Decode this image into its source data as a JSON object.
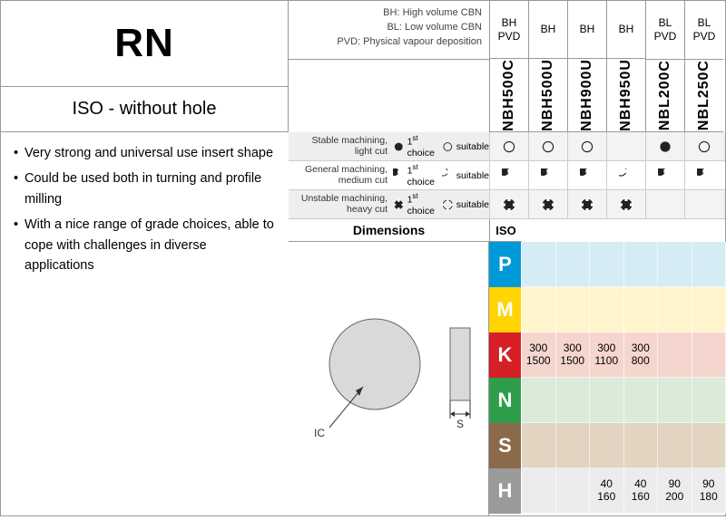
{
  "header": {
    "title": "RN",
    "subtitle": "ISO - without hole",
    "bullets": [
      "Very strong and universal use insert shape",
      "Could be used both in turning and profile milling",
      "With a nice range of grade choices, able to cope with challenges in diverse applications"
    ],
    "legend": [
      "BH: High volume CBN",
      "BL: Low volume CBN",
      "PVD: Physical vapour deposition"
    ]
  },
  "grades": [
    {
      "top1": "BH",
      "top2": "PVD",
      "name": "NBH500C"
    },
    {
      "top1": "BH",
      "top2": "",
      "name": "NBH500U"
    },
    {
      "top1": "BH",
      "top2": "",
      "name": "NBH900U"
    },
    {
      "top1": "BH",
      "top2": "",
      "name": "NBH950U"
    },
    {
      "top1": "BL",
      "top2": "PVD",
      "name": "NBL200C"
    },
    {
      "top1": "BL",
      "top2": "PVD",
      "name": "NBL250C"
    }
  ],
  "mach": {
    "first_choice_label": "1",
    "first_choice_suffix": "choice",
    "suitable_label": "suitable",
    "rows": [
      {
        "label1": "Stable machining,",
        "label2": "light cut",
        "icon": "circle",
        "alt": true,
        "cells": [
          "co",
          "co",
          "co",
          "",
          "cf",
          "co"
        ]
      },
      {
        "label1": "General machining,",
        "label2": "medium cut",
        "icon": "notch",
        "alt": false,
        "cells": [
          "nf",
          "nf",
          "nf",
          "no",
          "nf",
          "nf"
        ]
      },
      {
        "label1": "Unstable machining,",
        "label2": "heavy cut",
        "icon": "cross",
        "alt": true,
        "cells": [
          "xf",
          "xf",
          "xf",
          "xf",
          "",
          ""
        ]
      }
    ]
  },
  "dimensions_label": "Dimensions",
  "iso_label": "ISO",
  "dim_labels": {
    "ic": "IC",
    "s": "S"
  },
  "iso_rows": [
    {
      "key": "P",
      "key_bg": "#0099d8",
      "cell_bg": "#d6ecf5",
      "cells": [
        "",
        "",
        "",
        "",
        "",
        ""
      ]
    },
    {
      "key": "M",
      "key_bg": "#ffd400",
      "cell_bg": "#fff4cc",
      "cells": [
        "",
        "",
        "",
        "",
        "",
        ""
      ]
    },
    {
      "key": "K",
      "key_bg": "#d61f26",
      "cell_bg": "#f5d6cf",
      "cells": [
        "300\n1500",
        "300\n1500",
        "300\n1100",
        "300\n800",
        "",
        ""
      ]
    },
    {
      "key": "N",
      "key_bg": "#2e9e4b",
      "cell_bg": "#dcebd9",
      "cells": [
        "",
        "",
        "",
        "",
        "",
        ""
      ]
    },
    {
      "key": "S",
      "key_bg": "#8a6a4a",
      "cell_bg": "#e1d4c1",
      "cells": [
        "",
        "",
        "",
        "",
        "",
        ""
      ]
    },
    {
      "key": "H",
      "key_bg": "#9a9a9a",
      "cell_bg": "#ececec",
      "cells": [
        "",
        "",
        "40\n160",
        "40\n160",
        "90\n200",
        "90\n180"
      ]
    }
  ],
  "colors": {
    "text": "#222",
    "border": "#999"
  }
}
